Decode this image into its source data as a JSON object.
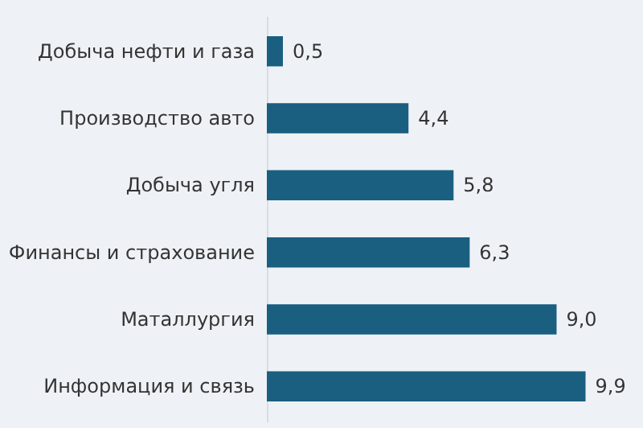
{
  "chart_data": {
    "type": "bar",
    "orientation": "horizontal",
    "categories": [
      "Добыча нефти и газа",
      "Производство авто",
      "Добыча угля",
      "Финансы и страхование",
      "Маталлургия",
      "Информация и связь"
    ],
    "values": [
      0.5,
      4.4,
      5.8,
      6.3,
      9.0,
      9.9
    ],
    "value_labels": [
      "0,5",
      "4,4",
      "5,8",
      "6,3",
      "9,0",
      "9,9"
    ],
    "color": "#1a5e80"
  }
}
